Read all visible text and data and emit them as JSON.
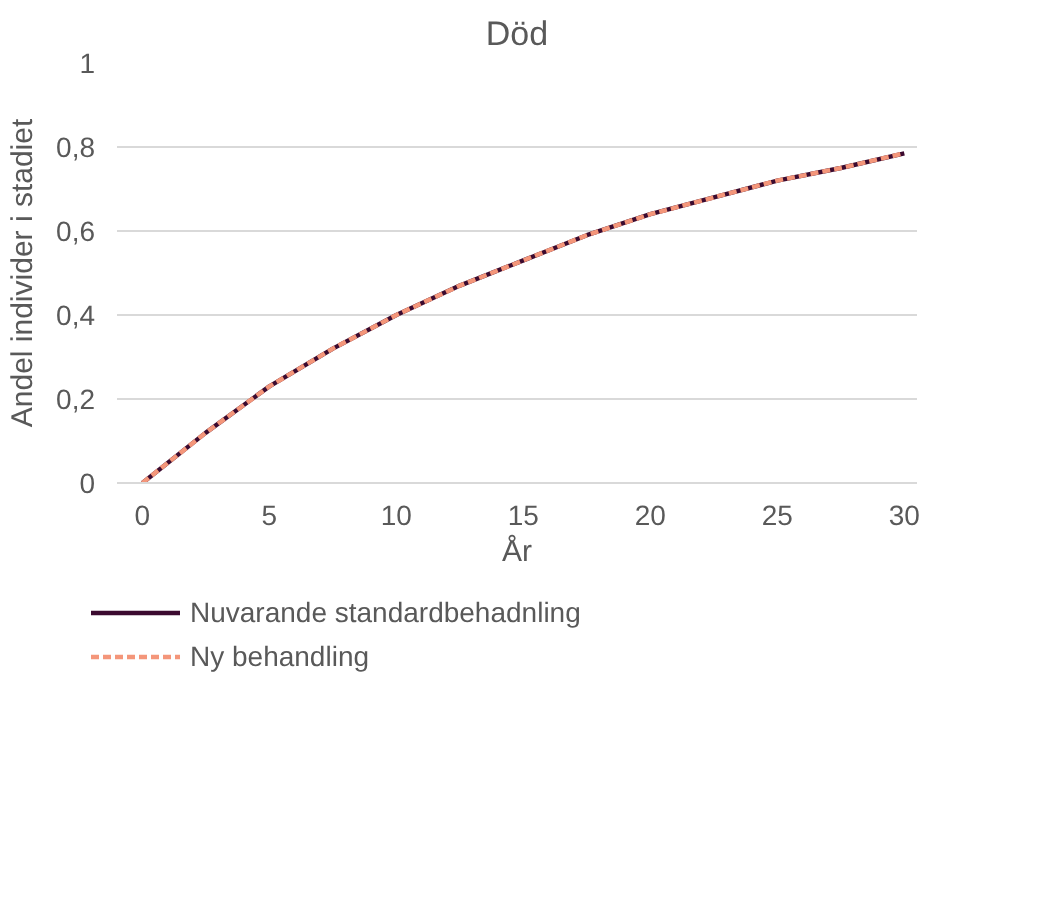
{
  "chart_data": {
    "type": "line",
    "title": "Död",
    "xlabel": "År",
    "ylabel": "Andel individer i stadiet",
    "x": [
      0,
      2.5,
      5,
      7.5,
      10,
      12.5,
      15,
      17.5,
      20,
      22.5,
      25,
      27.5,
      30
    ],
    "series": [
      {
        "name": "Nuvarande standardbehadnling",
        "color": "#3b0a2f",
        "line_style": "solid",
        "values": [
          0,
          0.12,
          0.23,
          0.32,
          0.4,
          0.47,
          0.53,
          0.59,
          0.64,
          0.68,
          0.72,
          0.75,
          0.785
        ]
      },
      {
        "name": "Ny behandling",
        "color": "#f4967a",
        "line_style": "dashed",
        "values": [
          0,
          0.12,
          0.23,
          0.32,
          0.4,
          0.47,
          0.53,
          0.59,
          0.64,
          0.68,
          0.72,
          0.75,
          0.785
        ]
      }
    ],
    "xlim": [
      -1,
      30.5
    ],
    "xticks": [
      0,
      5,
      10,
      15,
      20,
      25,
      30
    ],
    "ylim": [
      0,
      1
    ],
    "yticks": [
      0,
      {
        "value": 0.2,
        "label": "0,2"
      },
      {
        "value": 0.4,
        "label": "0,4"
      },
      {
        "value": 0.6,
        "label": "0,6"
      },
      {
        "value": 0.8,
        "label": "0,8"
      },
      1
    ],
    "grid": "y",
    "legend": "bottom",
    "marker": "none"
  }
}
